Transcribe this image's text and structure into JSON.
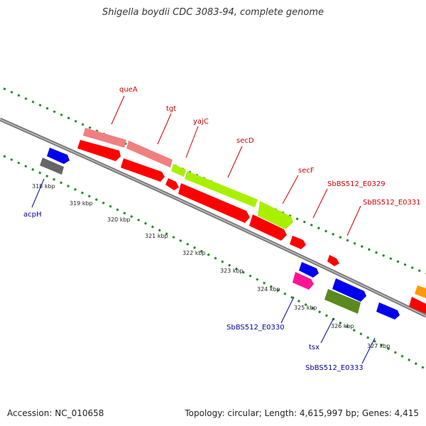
{
  "title": "Shigella boydii CDC 3083-94, complete genome",
  "accession_text": "Accession: NC_010658",
  "topology_text": "Topology: circular; Length: 4,615,997 bp; Genes: 4,415",
  "colors": {
    "backbone": "#8a8a8a",
    "tick": "#1f8c1f",
    "label_red": "#cc0000",
    "label_blue": "#00009c"
  },
  "ruler": [
    "318 kbp",
    "319 kbp",
    "320 kbp",
    "321 kbp",
    "322 kbp",
    "323 kbp",
    "324 kbp",
    "325 kbp",
    "326 kbp",
    "327 kbp"
  ],
  "gene_labels_top": [
    "queA",
    "tgt",
    "yajC",
    "secD",
    "secF",
    "SbBS512_E0329",
    "SbBS512_E0331"
  ],
  "gene_labels_bottom": [
    "acpH",
    "SbBS512_E0330",
    "tsx",
    "SbBS512_E0333"
  ]
}
